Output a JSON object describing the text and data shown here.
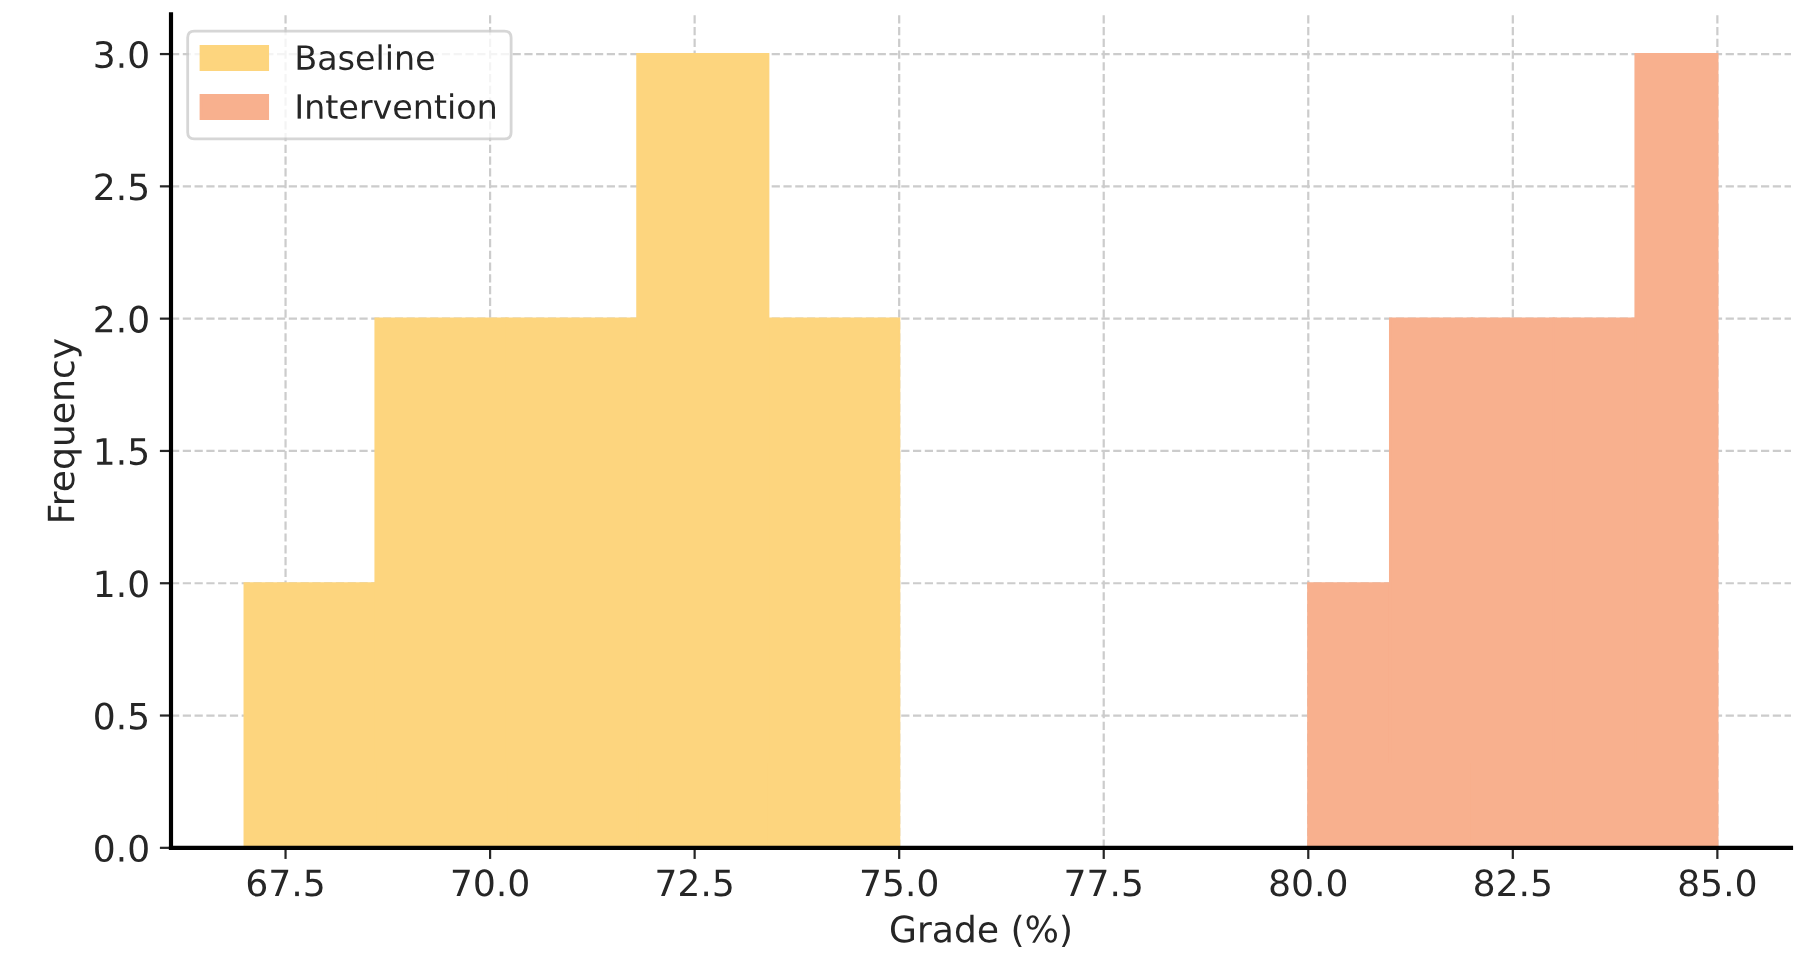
{
  "chart_data": {
    "type": "bar",
    "xlabel": "Grade (%)",
    "ylabel": "Frequency",
    "series": [
      {
        "name": "Baseline",
        "color": "#fdd57e",
        "x": [
          67.8,
          69.4,
          71.0,
          72.6,
          74.2
        ],
        "values": [
          1,
          2,
          2,
          3,
          2
        ]
      },
      {
        "name": "Intervention",
        "color": "#f8b08e",
        "x": [
          80.5,
          81.5,
          82.5,
          83.5,
          84.5
        ],
        "values": [
          1,
          2,
          2,
          2,
          3
        ]
      }
    ],
    "xlim": [
      66.1,
      85.9
    ],
    "xticks": [
      {
        "value": 67.5,
        "label": "67.5"
      },
      {
        "value": 70,
        "label": "70.0"
      },
      {
        "value": 72.5,
        "label": "72.5"
      },
      {
        "value": 75,
        "label": "75.0"
      },
      {
        "value": 77.5,
        "label": "77.5"
      },
      {
        "value": 80,
        "label": "80.0"
      },
      {
        "value": 82.5,
        "label": "82.5"
      },
      {
        "value": 85,
        "label": "85.0"
      }
    ],
    "ylim": [
      0,
      3.15
    ],
    "yticks": [
      {
        "value": 0,
        "label": "0.0"
      },
      {
        "value": 0.5,
        "label": "0.5"
      },
      {
        "value": 1,
        "label": "1.0"
      },
      {
        "value": 1.5,
        "label": "1.5"
      },
      {
        "value": 2,
        "label": "2.0"
      },
      {
        "value": 2.5,
        "label": "2.5"
      },
      {
        "value": 3,
        "label": "3.0"
      }
    ],
    "grid": true,
    "legend": "top left"
  }
}
